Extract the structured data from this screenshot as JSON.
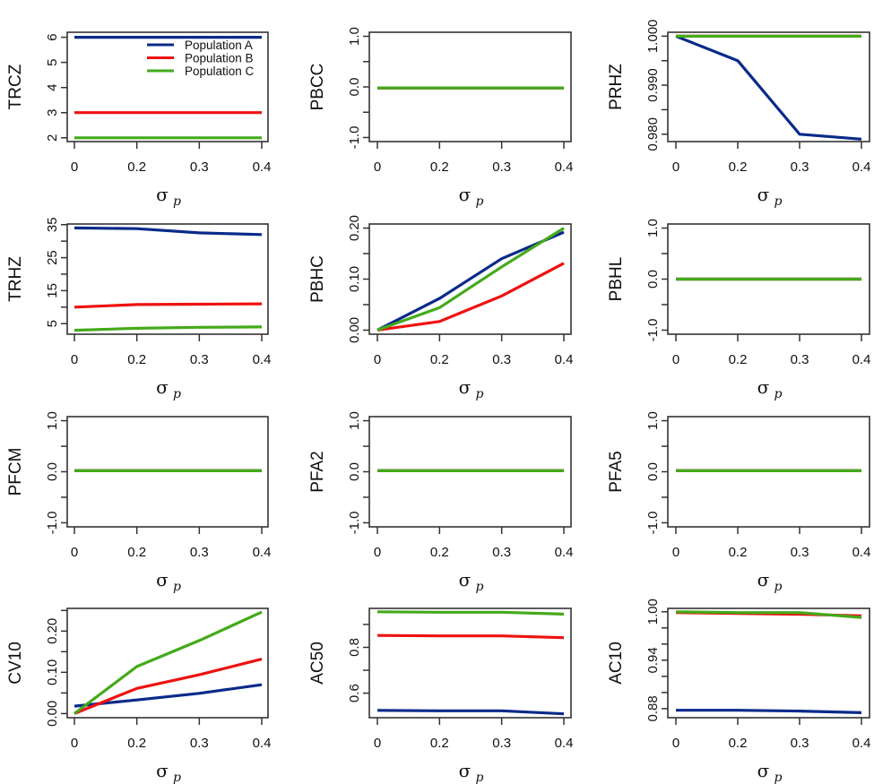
{
  "chart_data": {
    "type": "line",
    "layout": "4x3 grid of small-multiple line charts",
    "shared": {
      "x_categories": [
        "0",
        "0.2",
        "0.3",
        "0.4"
      ],
      "x_values": [
        0,
        0.2,
        0.3,
        0.4
      ],
      "x_spacing": "evenly spaced (categorical)",
      "xlabel_main": "σ",
      "xlabel_sub": "p",
      "series_names": [
        "Population A",
        "Population B",
        "Population C"
      ],
      "series_colors": [
        "#0a2a8a",
        "#ee1111",
        "#44aa1a"
      ],
      "grid": false
    },
    "legend": {
      "panel": "TRCZ",
      "placement": "top-right",
      "entries": [
        "Population A",
        "Population B",
        "Population C"
      ]
    },
    "panels": [
      {
        "ylabel": "TRCZ",
        "ylim": [
          1.85,
          6.2
        ],
        "yticks": [
          2,
          3,
          4,
          5,
          6
        ],
        "ytick_labels": [
          "2",
          "3",
          "4",
          "5",
          "6"
        ],
        "series": [
          {
            "name": "Population A",
            "values": [
              6,
              6,
              6,
              6
            ]
          },
          {
            "name": "Population B",
            "values": [
              3,
              3,
              3,
              3
            ]
          },
          {
            "name": "Population C",
            "values": [
              2,
              2,
              2,
              2
            ]
          }
        ]
      },
      {
        "ylabel": "PBCC",
        "ylim": [
          -1.08,
          1.08
        ],
        "yticks": [
          -1,
          -0.5,
          0,
          0.5,
          1
        ],
        "ytick_labels": [
          "-1.0",
          "",
          "0.0",
          "",
          "1.0"
        ],
        "series": [
          {
            "name": "Population A",
            "values": [
              -0.02,
              -0.02,
              -0.02,
              -0.02
            ]
          },
          {
            "name": "Population B",
            "values": [
              -0.02,
              -0.02,
              -0.02,
              -0.02
            ]
          },
          {
            "name": "Population C",
            "values": [
              -0.02,
              -0.02,
              -0.02,
              -0.02
            ]
          }
        ]
      },
      {
        "ylabel": "PRHZ",
        "ylim": [
          0.9785,
          1.0008
        ],
        "yticks": [
          0.98,
          0.985,
          0.99,
          0.995,
          1.0
        ],
        "ytick_labels": [
          "0.980",
          "",
          "0.990",
          "",
          "1.000"
        ],
        "series": [
          {
            "name": "Population A",
            "values": [
              1.0,
              0.995,
              0.98,
              0.979
            ]
          },
          {
            "name": "Population B",
            "values": [
              1.0,
              1.0,
              1.0,
              1.0
            ]
          },
          {
            "name": "Population C",
            "values": [
              1.0,
              1.0,
              1.0,
              1.0
            ]
          }
        ]
      },
      {
        "ylabel": "TRHZ",
        "ylim": [
          1.8,
          35.2
        ],
        "yticks": [
          5,
          10,
          15,
          20,
          25,
          30,
          35
        ],
        "ytick_labels": [
          "5",
          "",
          "15",
          "",
          "25",
          "",
          "35"
        ],
        "series": [
          {
            "name": "Population A",
            "values": [
              34.0,
              33.8,
              32.5,
              32.0
            ]
          },
          {
            "name": "Population B",
            "values": [
              10.0,
              10.8,
              10.9,
              11.0
            ]
          },
          {
            "name": "Population C",
            "values": [
              3.0,
              3.6,
              3.9,
              4.0
            ]
          }
        ]
      },
      {
        "ylabel": "PBHC",
        "ylim": [
          -0.008,
          0.208
        ],
        "yticks": [
          0,
          0.05,
          0.1,
          0.15,
          0.2
        ],
        "ytick_labels": [
          "0.00",
          "",
          "0.10",
          "",
          "0.20"
        ],
        "series": [
          {
            "name": "Population A",
            "values": [
              0,
              0.062,
              0.14,
              0.192
            ]
          },
          {
            "name": "Population B",
            "values": [
              0,
              0.017,
              0.067,
              0.131
            ]
          },
          {
            "name": "Population C",
            "values": [
              0,
              0.044,
              0.124,
              0.2
            ]
          }
        ]
      },
      {
        "ylabel": "PBHL",
        "ylim": [
          -1.08,
          1.08
        ],
        "yticks": [
          -1,
          -0.5,
          0,
          0.5,
          1
        ],
        "ytick_labels": [
          "-1.0",
          "",
          "0.0",
          "",
          "1.0"
        ],
        "series": [
          {
            "name": "Population A",
            "values": [
              0,
              0,
              0,
              0
            ]
          },
          {
            "name": "Population B",
            "values": [
              0,
              0,
              0,
              0
            ]
          },
          {
            "name": "Population C",
            "values": [
              0,
              0,
              0,
              0
            ]
          }
        ]
      },
      {
        "ylabel": "PFCM",
        "ylim": [
          -1.08,
          1.08
        ],
        "yticks": [
          -1,
          -0.5,
          0,
          0.5,
          1
        ],
        "ytick_labels": [
          "-1.0",
          "",
          "0.0",
          "",
          "1.0"
        ],
        "series": [
          {
            "name": "Population A",
            "values": [
              0.02,
              0.02,
              0.02,
              0.02
            ]
          },
          {
            "name": "Population B",
            "values": [
              0.02,
              0.02,
              0.02,
              0.02
            ]
          },
          {
            "name": "Population C",
            "values": [
              0.02,
              0.02,
              0.02,
              0.02
            ]
          }
        ]
      },
      {
        "ylabel": "PFA2",
        "ylim": [
          -1.08,
          1.08
        ],
        "yticks": [
          -1,
          -0.5,
          0,
          0.5,
          1
        ],
        "ytick_labels": [
          "-1.0",
          "",
          "0.0",
          "",
          "1.0"
        ],
        "series": [
          {
            "name": "Population A",
            "values": [
              0.02,
              0.02,
              0.02,
              0.02
            ]
          },
          {
            "name": "Population B",
            "values": [
              0.02,
              0.02,
              0.02,
              0.02
            ]
          },
          {
            "name": "Population C",
            "values": [
              0.02,
              0.02,
              0.02,
              0.02
            ]
          }
        ]
      },
      {
        "ylabel": "PFA5",
        "ylim": [
          -1.08,
          1.08
        ],
        "yticks": [
          -1,
          -0.5,
          0,
          0.5,
          1
        ],
        "ytick_labels": [
          "-1.0",
          "",
          "0.0",
          "",
          "1.0"
        ],
        "series": [
          {
            "name": "Population A",
            "values": [
              0.02,
              0.02,
              0.02,
              0.02
            ]
          },
          {
            "name": "Population B",
            "values": [
              0.02,
              0.02,
              0.02,
              0.02
            ]
          },
          {
            "name": "Population C",
            "values": [
              0.02,
              0.02,
              0.02,
              0.02
            ]
          }
        ]
      },
      {
        "ylabel": "CV10",
        "ylim": [
          -0.01,
          0.255
        ],
        "yticks": [
          0,
          0.05,
          0.1,
          0.15,
          0.2,
          0.25
        ],
        "ytick_labels": [
          "0.00",
          "",
          "0.10",
          "",
          "0.20",
          ""
        ],
        "series": [
          {
            "name": "Population A",
            "values": [
              0.018,
              0.033,
              0.049,
              0.07
            ]
          },
          {
            "name": "Population B",
            "values": [
              0,
              0.061,
              0.094,
              0.132
            ]
          },
          {
            "name": "Population C",
            "values": [
              0,
              0.114,
              0.177,
              0.246
            ]
          }
        ]
      },
      {
        "ylabel": "AC50",
        "ylim": [
          0.493,
          0.97
        ],
        "yticks": [
          0.6,
          0.7,
          0.8,
          0.9
        ],
        "ytick_labels": [
          "0.6",
          "",
          "0.8",
          ""
        ],
        "series": [
          {
            "name": "Population A",
            "values": [
              0.525,
              0.523,
              0.523,
              0.51
            ]
          },
          {
            "name": "Population B",
            "values": [
              0.852,
              0.85,
              0.85,
              0.842
            ]
          },
          {
            "name": "Population C",
            "values": [
              0.955,
              0.953,
              0.953,
              0.945
            ]
          }
        ]
      },
      {
        "ylabel": "AC10",
        "ylim": [
          0.8688,
          1.0042
        ],
        "yticks": [
          0.88,
          0.9,
          0.92,
          0.94,
          0.96,
          0.98,
          1.0
        ],
        "ytick_labels": [
          "0.88",
          "",
          "",
          "0.94",
          "",
          "",
          "1.00"
        ],
        "series": [
          {
            "name": "Population A",
            "values": [
              0.878,
              0.878,
              0.877,
              0.875
            ]
          },
          {
            "name": "Population B",
            "values": [
              0.999,
              0.998,
              0.997,
              0.995
            ]
          },
          {
            "name": "Population C",
            "values": [
              1.0,
              0.999,
              0.999,
              0.993
            ]
          }
        ]
      }
    ]
  }
}
